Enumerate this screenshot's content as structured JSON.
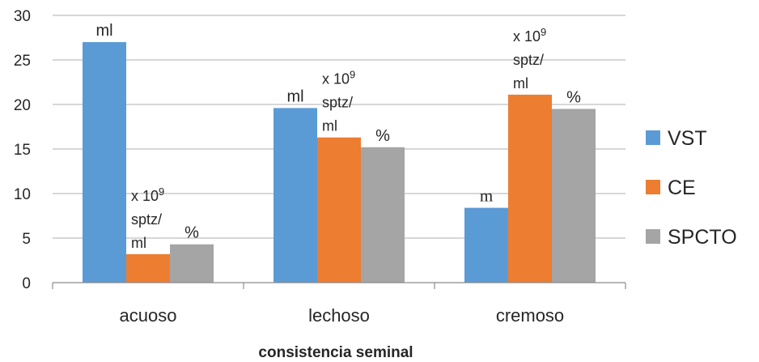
{
  "chart_data": {
    "type": "bar",
    "categories": [
      "acuoso",
      "lechoso",
      "cremoso"
    ],
    "series": [
      {
        "name": "VST",
        "color": "#5B9BD5",
        "values": [
          27.0,
          19.6,
          8.4
        ]
      },
      {
        "name": "CE",
        "color": "#ED7D31",
        "values": [
          3.2,
          16.3,
          21.1
        ]
      },
      {
        "name": "SPCTO",
        "color": "#A5A5A5",
        "values": [
          4.3,
          15.2,
          19.5
        ]
      }
    ],
    "xlabel": "consistencia seminal",
    "ylabel": "",
    "ylim": [
      0,
      30
    ],
    "yticks": [
      0,
      5,
      10,
      15,
      20,
      25,
      30
    ],
    "grid": true,
    "legend_position": "right",
    "annotations": [
      {
        "category": "acuoso",
        "series": "VST",
        "lines": [
          "ml"
        ]
      },
      {
        "category": "acuoso",
        "series": "CE",
        "lines": [
          "x 10",
          "sptz/",
          "ml"
        ],
        "superscript": "9"
      },
      {
        "category": "acuoso",
        "series": "SPCTO",
        "lines": [
          "%"
        ]
      },
      {
        "category": "lechoso",
        "series": "VST",
        "lines": [
          "ml"
        ]
      },
      {
        "category": "lechoso",
        "series": "CE",
        "lines": [
          "x 10",
          "sptz/",
          "ml"
        ],
        "superscript": "9"
      },
      {
        "category": "lechoso",
        "series": "SPCTO",
        "lines": [
          "%"
        ]
      },
      {
        "category": "cremoso",
        "series": "VST",
        "lines": [
          "m"
        ]
      },
      {
        "category": "cremoso",
        "series": "CE",
        "lines": [
          "x 10",
          "sptz/",
          "ml"
        ],
        "superscript": "9"
      },
      {
        "category": "cremoso",
        "series": "SPCTO",
        "lines": [
          "%"
        ]
      }
    ]
  }
}
